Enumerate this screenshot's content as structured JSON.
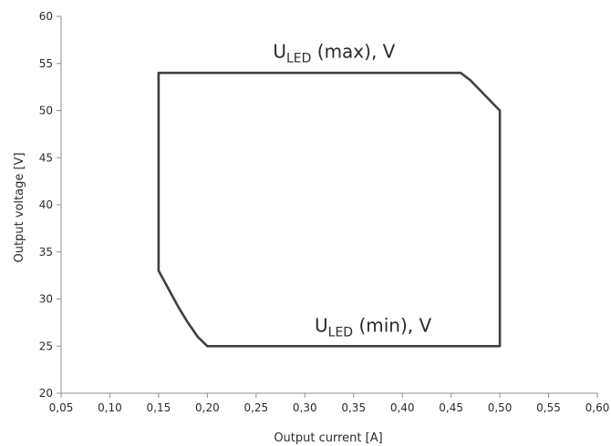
{
  "chart_data": {
    "type": "line",
    "title": "",
    "xlabel": "Output current [A]",
    "ylabel": "Output voltage [V]",
    "xlim": [
      0.05,
      0.6
    ],
    "ylim": [
      20,
      60
    ],
    "x_ticks": [
      0.05,
      0.1,
      0.15,
      0.2,
      0.25,
      0.3,
      0.35,
      0.4,
      0.45,
      0.5,
      0.55,
      0.6
    ],
    "x_tick_labels": [
      "0,05",
      "0,10",
      "0,15",
      "0,20",
      "0,25",
      "0,30",
      "0,35",
      "0,40",
      "0,45",
      "0,50",
      "0,55",
      "0,60"
    ],
    "y_ticks": [
      20,
      25,
      30,
      35,
      40,
      45,
      50,
      55,
      60
    ],
    "y_tick_labels": [
      "20",
      "25",
      "30",
      "35",
      "40",
      "45",
      "50",
      "55",
      "60"
    ],
    "grid": false,
    "legend": "none",
    "series": [
      {
        "color": "#404040",
        "closed": true,
        "points": [
          [
            0.15,
            54.0
          ],
          [
            0.46,
            54.0
          ],
          [
            0.47,
            53.2
          ],
          [
            0.5,
            50.0
          ],
          [
            0.5,
            25.0
          ],
          [
            0.2,
            25.0
          ],
          [
            0.19,
            26.0
          ],
          [
            0.18,
            27.5
          ],
          [
            0.17,
            29.2
          ],
          [
            0.15,
            33.0
          ],
          [
            0.15,
            54.0
          ]
        ]
      }
    ],
    "annotations": [
      {
        "main": "U",
        "sub": "LED",
        "rest": " (max), V",
        "x": 0.33,
        "y": 55.6
      },
      {
        "main": "U",
        "sub": "LED",
        "rest": " (min), V",
        "x": 0.37,
        "y": 26.5
      }
    ]
  }
}
